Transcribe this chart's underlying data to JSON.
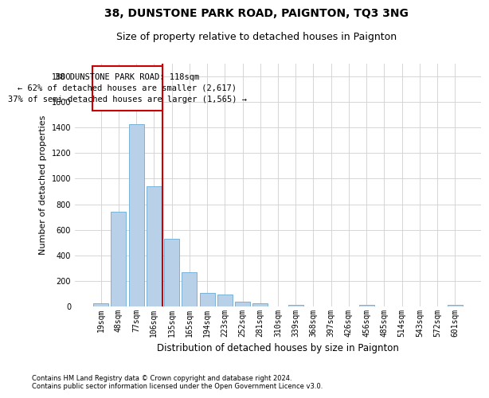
{
  "title": "38, DUNSTONE PARK ROAD, PAIGNTON, TQ3 3NG",
  "subtitle": "Size of property relative to detached houses in Paignton",
  "xlabel": "Distribution of detached houses by size in Paignton",
  "ylabel": "Number of detached properties",
  "bar_labels": [
    "19sqm",
    "48sqm",
    "77sqm",
    "106sqm",
    "135sqm",
    "165sqm",
    "194sqm",
    "223sqm",
    "252sqm",
    "281sqm",
    "310sqm",
    "339sqm",
    "368sqm",
    "397sqm",
    "426sqm",
    "456sqm",
    "485sqm",
    "514sqm",
    "543sqm",
    "572sqm",
    "601sqm"
  ],
  "bar_values": [
    25,
    740,
    1425,
    940,
    530,
    265,
    105,
    95,
    40,
    25,
    0,
    15,
    0,
    0,
    0,
    15,
    0,
    0,
    0,
    0,
    15
  ],
  "bar_color": "#b8d0e8",
  "bar_edgecolor": "#6aaad4",
  "grid_color": "#d0d0d0",
  "vline_x_data": 3.5,
  "vline_color": "#cc0000",
  "annotation_line1": "38 DUNSTONE PARK ROAD: 118sqm",
  "annotation_line2": "← 62% of detached houses are smaller (2,617)",
  "annotation_line3": "37% of semi-detached houses are larger (1,565) →",
  "annotation_box_color": "#cc0000",
  "footnote1": "Contains HM Land Registry data © Crown copyright and database right 2024.",
  "footnote2": "Contains public sector information licensed under the Open Government Licence v3.0.",
  "ylim": [
    0,
    1900
  ],
  "yticks": [
    0,
    200,
    400,
    600,
    800,
    1000,
    1200,
    1400,
    1600,
    1800
  ],
  "title_fontsize": 10,
  "subtitle_fontsize": 9,
  "xlabel_fontsize": 8.5,
  "ylabel_fontsize": 8,
  "tick_fontsize": 7,
  "annot_fontsize": 7.5,
  "footnote_fontsize": 6
}
